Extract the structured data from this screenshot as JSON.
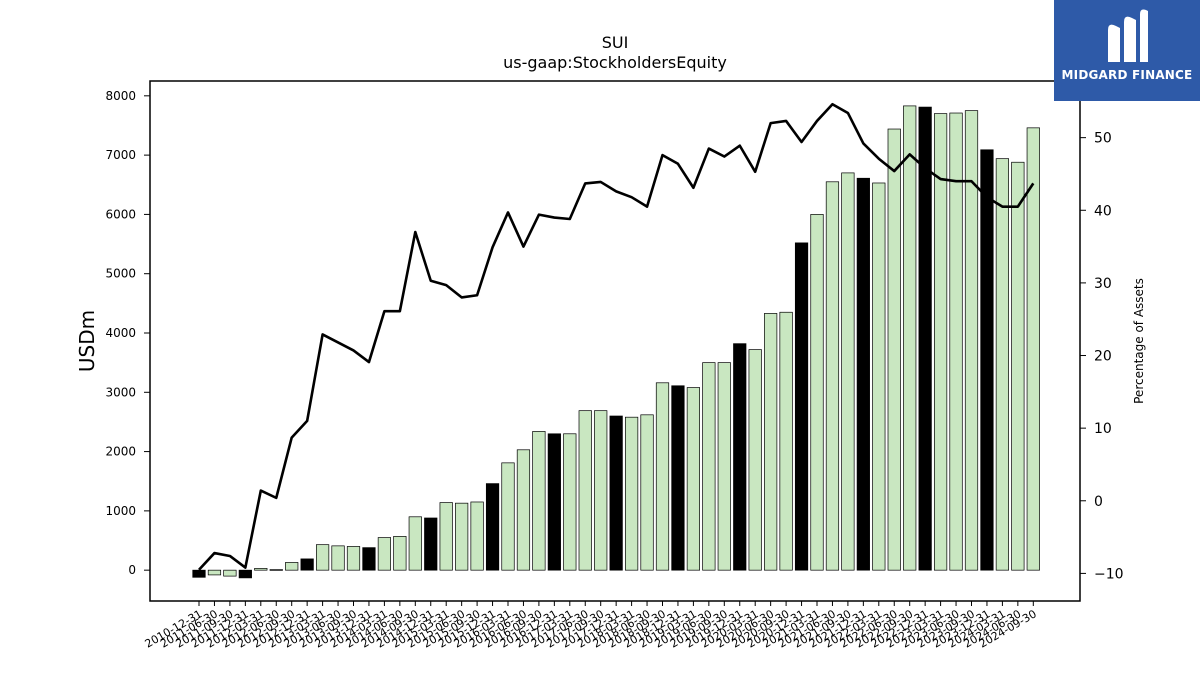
{
  "chart_data": {
    "type": "bar",
    "title": "SUI",
    "subtitle": "us-gaap:StockholdersEquity",
    "ylabel": "USDm",
    "y2label": "Percentage of Assets",
    "ylim": [
      -520,
      8250
    ],
    "y2lim": [
      -13.8,
      57.8
    ],
    "yticks": [
      0,
      1000,
      2000,
      3000,
      4000,
      5000,
      6000,
      7000,
      8000
    ],
    "y2ticks": [
      -10,
      0,
      10,
      20,
      30,
      40,
      50
    ],
    "categories": [
      "2010-12-31",
      "2011-06-30",
      "2011-09-30",
      "2011-12-31",
      "2012-03-31",
      "2012-06-30",
      "2012-09-30",
      "2012-12-31",
      "2013-03-31",
      "2013-06-30",
      "2013-09-30",
      "2013-12-31",
      "2014-03-31",
      "2014-06-30",
      "2014-09-30",
      "2014-12-31",
      "2015-03-31",
      "2015-06-30",
      "2015-09-30",
      "2015-12-31",
      "2016-03-31",
      "2016-06-30",
      "2016-09-30",
      "2016-12-31",
      "2017-03-31",
      "2017-06-30",
      "2017-09-30",
      "2017-12-31",
      "2018-03-31",
      "2018-06-30",
      "2018-09-30",
      "2018-12-31",
      "2019-03-31",
      "2019-06-30",
      "2019-09-30",
      "2019-12-31",
      "2020-03-31",
      "2020-06-30",
      "2020-09-30",
      "2020-12-31",
      "2021-03-31",
      "2021-06-30",
      "2021-09-30",
      "2021-12-31",
      "2022-03-31",
      "2022-06-30",
      "2022-09-30",
      "2022-12-31",
      "2023-03-31",
      "2023-06-30",
      "2023-09-30",
      "2023-12-31",
      "2024-03-31",
      "2024-06-30",
      "2024-09-30"
    ],
    "series": [
      {
        "type": "bar",
        "values": [
          -120,
          -80,
          -100,
          -130,
          30,
          10,
          130,
          190,
          430,
          410,
          400,
          380,
          550,
          570,
          900,
          880,
          1140,
          1130,
          1150,
          1460,
          1810,
          2030,
          2340,
          2300,
          2300,
          2690,
          2690,
          2600,
          2580,
          2620,
          3160,
          3110,
          3080,
          3500,
          3500,
          3820,
          3720,
          4330,
          4350,
          5520,
          6000,
          6550,
          6700,
          6610,
          6530,
          7440,
          7830,
          7810,
          7700,
          7710,
          7750,
          7090,
          6940,
          6880,
          7460
        ],
        "year_end_color": "#000000",
        "quarter_color": "#c9e7c1"
      },
      {
        "type": "line",
        "color": "#000000",
        "values": [
          -9.5,
          -7.2,
          -7.6,
          -9.2,
          1.4,
          0.4,
          8.7,
          11.0,
          22.9,
          21.8,
          20.7,
          19.1,
          26.1,
          26.1,
          37.0,
          30.3,
          29.7,
          28.0,
          28.3,
          34.9,
          39.7,
          35.0,
          39.4,
          39.0,
          38.8,
          43.7,
          43.9,
          42.6,
          41.8,
          40.5,
          47.6,
          46.4,
          43.1,
          48.5,
          47.4,
          48.9,
          45.3,
          52.0,
          52.3,
          49.4,
          52.3,
          54.6,
          53.4,
          49.2,
          47.1,
          45.4,
          47.7,
          45.8,
          44.3,
          44.0,
          44.0,
          41.8,
          40.5,
          40.5,
          43.7
        ]
      }
    ],
    "grid": false,
    "legend": "none"
  },
  "logo": {
    "text": "MIDGARD FINANCE",
    "color": "#2e5aa8"
  }
}
